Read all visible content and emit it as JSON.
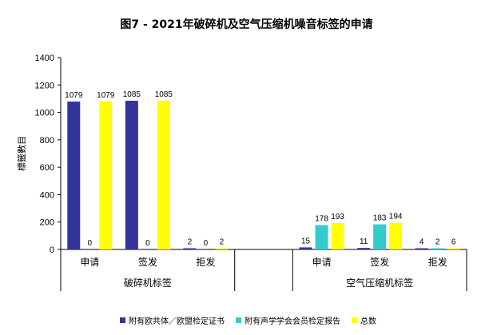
{
  "chart_data": {
    "type": "bar",
    "title": "图7 - 2021年破碎机及空气压缩机噪音标签的申请",
    "ylabel": "標籤數目",
    "ylim": [
      0,
      1400
    ],
    "yticks": [
      0,
      200,
      400,
      600,
      800,
      1000,
      1200,
      1400
    ],
    "groups": [
      {
        "name": "破碎机标签",
        "categories": [
          "申请",
          "签发",
          "拒发"
        ]
      },
      {
        "name": "空气压缩机标签",
        "categories": [
          "申请",
          "签发",
          "拒发"
        ]
      }
    ],
    "series": [
      {
        "name": "附有欧共体／欧盟检定证书",
        "color": "#333399",
        "values": [
          1079,
          1085,
          2,
          15,
          11,
          4
        ]
      },
      {
        "name": "附有声学学会会员检定报告",
        "color": "#33CCCC",
        "values": [
          0,
          0,
          0,
          178,
          183,
          2
        ]
      },
      {
        "name": "总数",
        "color": "#FFFF00",
        "values": [
          1079,
          1085,
          2,
          193,
          194,
          6
        ]
      }
    ]
  }
}
